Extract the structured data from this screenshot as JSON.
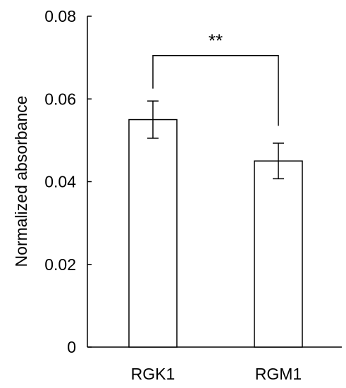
{
  "chart_data": {
    "type": "bar",
    "title": "",
    "xlabel": "",
    "ylabel": "Normalized absorbance",
    "ylim": [
      0,
      0.08
    ],
    "yticks": [
      0,
      0.02,
      0.04,
      0.06,
      0.08
    ],
    "ytick_labels": [
      "0",
      "0.02",
      "0.04",
      "0.06",
      "0.08"
    ],
    "categories": [
      "RGK1",
      "RGM1"
    ],
    "values": [
      0.055,
      0.045
    ],
    "error": [
      0.0045,
      0.0043
    ],
    "bar_fill": "#ffffff",
    "bar_stroke": "#000000",
    "grid": false,
    "significance": {
      "between": [
        "RGK1",
        "RGM1"
      ],
      "label": "**",
      "bracket_y": 0.0705
    }
  }
}
